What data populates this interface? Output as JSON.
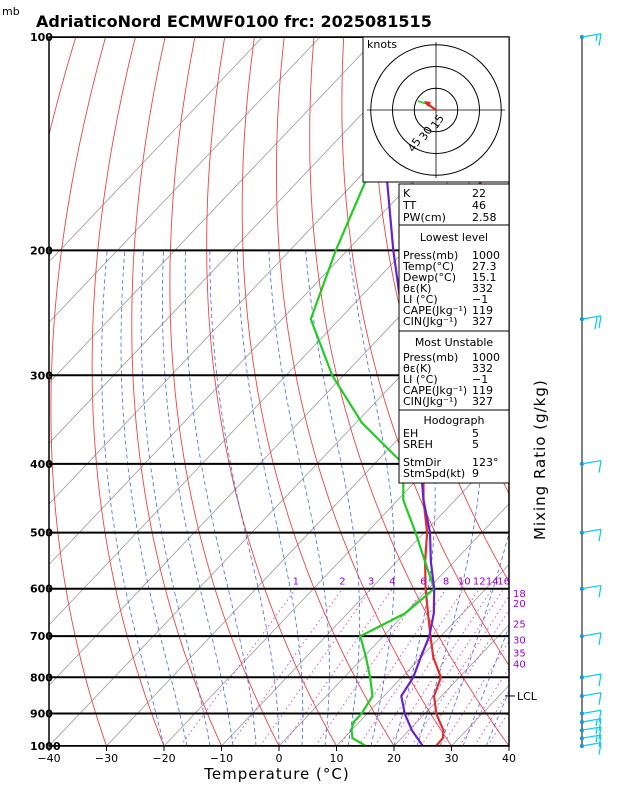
{
  "chart_data": {
    "type": "line",
    "title": "AdriaticoNord ECMWF0100 frc: 2025081515",
    "pressure_unit": "mb",
    "xlabel": "Temperature (°C)",
    "right_label": "Mixing Ratio (g/kg)",
    "xlim": [
      -40,
      40
    ],
    "ylim_mb": [
      1000,
      100
    ],
    "y_scale": "log",
    "skew": true,
    "pressure_ticks": [
      100,
      200,
      300,
      400,
      500,
      600,
      700,
      800,
      900,
      1000
    ],
    "temp_ticks": [
      -40,
      -30,
      -20,
      -10,
      0,
      10,
      20,
      30,
      40
    ],
    "series": [
      {
        "name": "Temperature",
        "color": "#e03030",
        "pressure": [
          1000,
          975,
          950,
          925,
          900,
          850,
          800,
          750,
          700,
          650,
          600,
          550,
          500,
          450,
          400,
          350,
          300,
          250,
          200,
          150,
          100
        ],
        "values": [
          27.3,
          27.2,
          26.0,
          24.0,
          22.0,
          18.7,
          16.8,
          12.2,
          8.2,
          4.0,
          -0.5,
          -5.0,
          -9.5,
          -15.5,
          -21.5,
          -29.5,
          -37.5,
          -48.0,
          -55.0,
          -59.0,
          -60.0
        ]
      },
      {
        "name": "Dewpoint",
        "color": "#22cc22",
        "pressure": [
          1000,
          975,
          950,
          925,
          900,
          850,
          800,
          750,
          700,
          650,
          600,
          550,
          500,
          450,
          400,
          350,
          300,
          250,
          200,
          150,
          100
        ],
        "values": [
          15.1,
          11.5,
          10.0,
          9.0,
          9.0,
          8.0,
          4.5,
          0.5,
          -4.0,
          0.0,
          1.0,
          -5.0,
          -11.5,
          -19.0,
          -25.0,
          -39.0,
          -52.0,
          -65.0,
          -72.0,
          -80.0,
          -86.0
        ]
      },
      {
        "name": "Parcel",
        "color": "#6622cc",
        "pressure": [
          1000,
          950,
          900,
          850,
          800,
          750,
          700,
          650,
          600,
          550,
          500,
          450,
          400,
          350,
          300,
          250,
          200,
          150,
          120
        ],
        "values": [
          25.0,
          20.5,
          16.5,
          13.0,
          12.0,
          10.0,
          8.0,
          5.0,
          1.0,
          -4.0,
          -9.0,
          -15.5,
          -22.0,
          -29.0,
          -38.0,
          -49.0,
          -62.0,
          -78.0,
          -89.0
        ]
      }
    ],
    "mixing_ratio_labels": [
      "1",
      "2",
      "3",
      "4",
      "6",
      "8",
      "10",
      "12",
      "14",
      "16",
      "18",
      "20",
      "25",
      "30",
      "35",
      "40"
    ],
    "mixing_ratio_values": [
      1,
      2,
      3,
      4,
      6,
      8,
      10,
      12,
      14,
      16,
      18,
      20,
      25,
      30,
      35,
      40
    ],
    "lcl_label": "LCL",
    "lcl_pressure": 850,
    "hodograph": {
      "units_label": "knots",
      "ring_labels": [
        "15",
        "30",
        "45"
      ],
      "ring_values": [
        15,
        30,
        45
      ]
    },
    "wind_barbs": {
      "pressure": [
        100,
        250,
        400,
        500,
        600,
        700,
        800,
        850,
        900,
        925,
        950,
        975,
        1000
      ],
      "speed_kt": [
        15,
        20,
        10,
        10,
        10,
        10,
        10,
        10,
        10,
        15,
        15,
        15,
        10
      ]
    }
  },
  "indices_top": [
    {
      "label": "K",
      "value": "22"
    },
    {
      "label": "TT",
      "value": "46"
    },
    {
      "label": "PW(cm)",
      "value": "2.58"
    }
  ],
  "lowest_level": {
    "header": "Lowest level",
    "rows": [
      {
        "label": "Press(mb)",
        "value": "1000"
      },
      {
        "label": "Temp(°C)",
        "value": "27.3"
      },
      {
        "label": "Dewp(°C)",
        "value": "15.1"
      },
      {
        "label": "θε(K)",
        "value": "332"
      },
      {
        "label": "LI (°C)",
        "value": "−1"
      },
      {
        "label": "CAPE(Jkg⁻¹)",
        "value": "119"
      },
      {
        "label": "CIN(Jkg⁻¹)",
        "value": "327"
      }
    ]
  },
  "most_unstable": {
    "header": "Most Unstable",
    "rows": [
      {
        "label": "Press(mb)",
        "value": "1000"
      },
      {
        "label": "θε(K)",
        "value": "332"
      },
      {
        "label": "LI (°C)",
        "value": "−1"
      },
      {
        "label": "CAPE(Jkg⁻¹)",
        "value": "119"
      },
      {
        "label": "CIN(Jkg⁻¹)",
        "value": "327"
      }
    ]
  },
  "hodograph_box": {
    "header": "Hodograph",
    "rows": [
      {
        "label": "EH",
        "value": "5"
      },
      {
        "label": "SREH",
        "value": "5"
      }
    ],
    "rows2": [
      {
        "label": "StmDir",
        "value": "123°"
      },
      {
        "label": "StmSpd(kt)",
        "value": "9"
      }
    ]
  },
  "colors": {
    "isotherm": "#999999",
    "dry_adiabat": "#ee4444",
    "moist_adiabat": "#4466ee",
    "mixing_ratio": "#cc44cc",
    "barb": "#00ccee"
  }
}
